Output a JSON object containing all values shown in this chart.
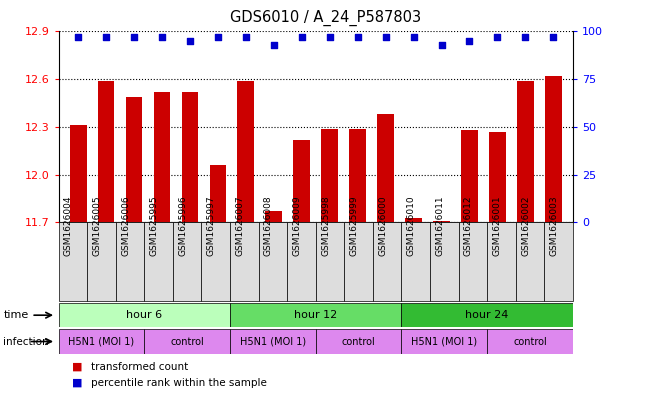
{
  "title": "GDS6010 / A_24_P587803",
  "samples": [
    "GSM1626004",
    "GSM1626005",
    "GSM1626006",
    "GSM1625995",
    "GSM1625996",
    "GSM1625997",
    "GSM1626007",
    "GSM1626008",
    "GSM1626009",
    "GSM1625998",
    "GSM1625999",
    "GSM1626000",
    "GSM1626010",
    "GSM1626011",
    "GSM1626012",
    "GSM1626001",
    "GSM1626002",
    "GSM1626003"
  ],
  "bar_values": [
    12.31,
    12.59,
    12.49,
    12.52,
    12.52,
    12.06,
    12.59,
    11.77,
    12.22,
    12.29,
    12.29,
    12.38,
    11.73,
    11.71,
    12.28,
    12.27,
    12.59,
    12.62
  ],
  "percentile_values": [
    97,
    97,
    97,
    97,
    95,
    97,
    97,
    93,
    97,
    97,
    97,
    97,
    97,
    93,
    95,
    97,
    97,
    97
  ],
  "ylim_left": [
    11.7,
    12.9
  ],
  "yticks_left": [
    11.7,
    12.0,
    12.3,
    12.6,
    12.9
  ],
  "ylim_right": [
    0,
    100
  ],
  "yticks_right": [
    0,
    25,
    50,
    75,
    100
  ],
  "bar_color": "#cc0000",
  "dot_color": "#0000cc",
  "bar_width": 0.6,
  "time_row_colors": [
    "#bbffbb",
    "#66dd66",
    "#33bb33"
  ],
  "infection_color": "#dd88ee",
  "time_groups": [
    {
      "label": "hour 6",
      "start": 0,
      "end": 6
    },
    {
      "label": "hour 12",
      "start": 6,
      "end": 12
    },
    {
      "label": "hour 24",
      "start": 12,
      "end": 18
    }
  ],
  "inf_groups": [
    {
      "label": "H5N1 (MOI 1)",
      "start": 0,
      "end": 3
    },
    {
      "label": "control",
      "start": 3,
      "end": 6
    },
    {
      "label": "H5N1 (MOI 1)",
      "start": 6,
      "end": 9
    },
    {
      "label": "control",
      "start": 9,
      "end": 12
    },
    {
      "label": "H5N1 (MOI 1)",
      "start": 12,
      "end": 15
    },
    {
      "label": "control",
      "start": 15,
      "end": 18
    }
  ],
  "xtick_bg": "#dddddd",
  "fig_bg": "#ffffff",
  "plot_bg": "#ffffff"
}
